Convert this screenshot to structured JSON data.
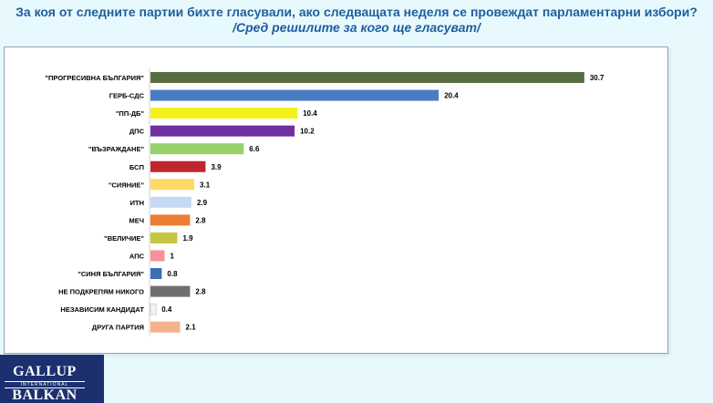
{
  "title": "За коя от следните партии бихте  гласували,  ако следващата неделя се провеждат парламентарни избори?",
  "subtitle": "/Сред решилите за кого ще гласуват/",
  "logo": {
    "top": "GALLUP",
    "middle": "INTERNATIONAL",
    "bottom": "BALKAN"
  },
  "chart_data": {
    "type": "bar",
    "orientation": "horizontal",
    "title": "",
    "xlabel": "",
    "ylabel": "",
    "xlim": [
      0,
      35
    ],
    "grid": false,
    "legend": "none",
    "categories": [
      "\"ПРОГРЕСИВНА БЪЛГАРИЯ\"",
      "ГЕРБ-СДС",
      "\"ПП-ДБ\"",
      "ДПС",
      "\"ВЪЗРАЖДАНЕ\"",
      "БСП",
      "\"СИЯНИЕ\"",
      "ИТН",
      "МЕЧ",
      "\"ВЕЛИЧИЕ\"",
      "АПС",
      "\"СИНЯ БЪЛГАРИЯ\"",
      "НЕ ПОДКРЕПЯМ НИКОГО",
      "НЕЗАВИСИМ КАНДИДАТ",
      "ДРУГА ПАРТИЯ"
    ],
    "values": [
      30.7,
      20.4,
      10.4,
      10.2,
      6.6,
      3.9,
      3.1,
      2.9,
      2.8,
      1.9,
      1,
      0.8,
      2.8,
      0.4,
      2.1
    ],
    "value_labels": [
      "30.7",
      "20.4",
      "10.4",
      "10.2",
      "6.6",
      "3.9",
      "3.1",
      "2.9",
      "2.8",
      "1.9",
      "1",
      "0.8",
      "2.8",
      "0.4",
      "2.1"
    ],
    "colors": [
      "#586e41",
      "#4a7cc4",
      "#f2f21a",
      "#7030a0",
      "#98d06a",
      "#c0262d",
      "#ffd966",
      "#c5d9f1",
      "#ed7d31",
      "#c5c640",
      "#f4919a",
      "#3a6fb5",
      "#6f6f6f",
      "#f2f2f2",
      "#f5b28b"
    ]
  }
}
